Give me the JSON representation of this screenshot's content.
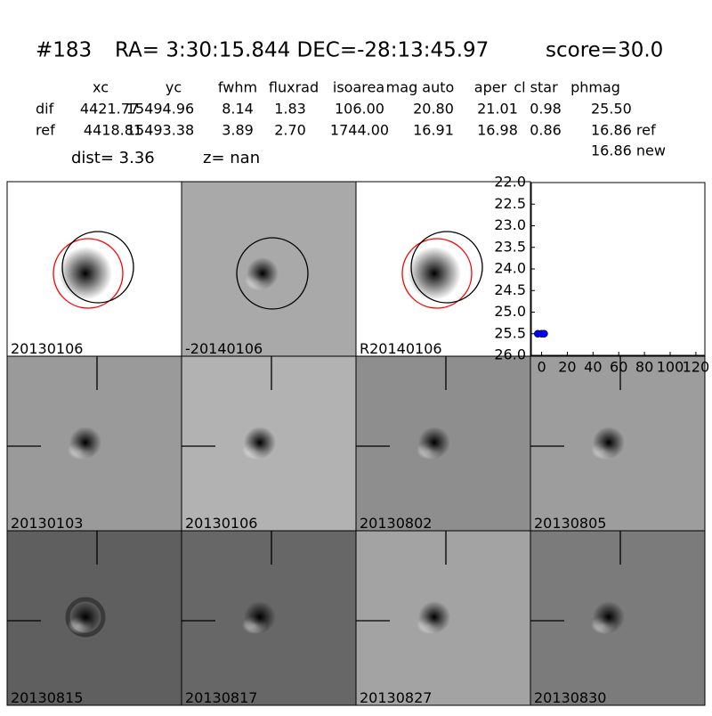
{
  "header": {
    "id": "#183",
    "coords": "RA= 3:30:15.844 DEC=-28:13:45.97",
    "score": "score=30.0"
  },
  "table": {
    "columns": [
      "xc",
      "yc",
      "fwhm",
      "fluxrad",
      "isoarea",
      "mag auto",
      "aper",
      "cl star",
      "phmag"
    ],
    "rows": [
      [
        "dif",
        "4421.77",
        "15494.96",
        "8.14",
        "1.83",
        "106.00",
        "20.80",
        "21.01",
        "0.98",
        "25.50"
      ],
      [
        "ref",
        "4418.81",
        "15493.38",
        "3.89",
        "2.70",
        "1744.00",
        "16.91",
        "16.98",
        "0.86",
        "16.86 ref"
      ]
    ],
    "extra": "16.86 new"
  },
  "dist": "dist=  3.36",
  "z": "z=   nan",
  "panels": [
    {
      "label": "20130106"
    },
    {
      "label": "-20140106"
    },
    {
      "label": "R20140106"
    },
    {
      "label": "20130103"
    },
    {
      "label": "20130106",
      "label_color": "#ff0000"
    },
    {
      "label": "20130802"
    },
    {
      "label": "20130805"
    },
    {
      "label": "20130815"
    },
    {
      "label": "20130817"
    },
    {
      "label": "20130827"
    },
    {
      "label": "20130830"
    }
  ],
  "chart_data": {
    "type": "scatter",
    "color": "#0000ff",
    "x": [
      -3,
      0,
      2
    ],
    "values": [
      25.5,
      25.5,
      25.5
    ],
    "xlim": [
      -8,
      127
    ],
    "xticks": [
      0,
      20,
      40,
      60,
      80,
      100,
      120
    ],
    "ylim": [
      26,
      22
    ],
    "yticks": [
      {
        "value": 22,
        "label": "22.0"
      },
      {
        "value": 22.5,
        "label": "22.5"
      },
      {
        "value": 23,
        "label": "23.0"
      },
      {
        "value": 23.5,
        "label": "23.5"
      },
      {
        "value": 24,
        "label": "24.0"
      },
      {
        "value": 24.5,
        "label": "24.5"
      },
      {
        "value": 25,
        "label": "25.0"
      },
      {
        "value": 25.5,
        "label": "25.5"
      },
      {
        "value": 26,
        "label": "26.0"
      }
    ]
  }
}
